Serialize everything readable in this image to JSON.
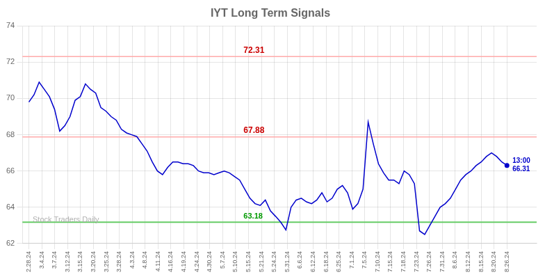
{
  "chart_data": {
    "type": "line",
    "title": "IYT Long Term Signals",
    "x": [
      0,
      0.397849,
      0.795699,
      1.193548,
      1.591398,
      1.989247,
      2.387097,
      2.784946,
      3.182796,
      3.580645,
      3.978495,
      4.376344,
      4.774194,
      5.172043,
      5.569892,
      5.967742,
      6.365591,
      6.763441,
      7.16129,
      7.55914,
      7.956989,
      8.354839,
      8.752688,
      9.150538,
      9.548387,
      9.946237,
      10.344086,
      10.741935,
      11.139785,
      11.537634,
      11.935484,
      12.333333,
      12.731183,
      13.129032,
      13.526882,
      13.924731,
      14.322581,
      14.72043,
      15.11828,
      15.516129,
      15.913978,
      16.311828,
      16.709677,
      17.107527,
      17.505376,
      17.903226,
      18.301075,
      18.698925,
      19.096774,
      19.494624,
      19.892473,
      20.290323,
      20.688172,
      21.086022,
      21.483871,
      21.88172,
      22.27957,
      22.677419,
      23.075269,
      23.473118,
      23.870968,
      24.268817,
      24.666667,
      25.064516,
      25.462366,
      25.860215,
      26.258065,
      26.655914,
      27.053763,
      27.451613,
      27.849462,
      28.247312,
      28.645161,
      29.043011,
      29.44086,
      29.83871,
      30.236559,
      30.634409,
      31.032258,
      31.430108,
      31.827957,
      32.225806,
      32.623656,
      33.021505,
      33.419355,
      33.817204,
      34.215054,
      34.612903,
      35.010753,
      35.408602,
      35.806452,
      36.204301,
      36.602151,
      37
    ],
    "values": [
      69.8,
      70.2,
      70.9,
      70.5,
      70.1,
      69.4,
      68.2,
      68.5,
      69.0,
      69.9,
      70.1,
      70.8,
      70.5,
      70.3,
      69.5,
      69.3,
      69.0,
      68.8,
      68.3,
      68.1,
      68.0,
      67.9,
      67.5,
      67.1,
      66.5,
      66.0,
      65.8,
      66.2,
      66.5,
      66.5,
      66.4,
      66.4,
      66.3,
      66.0,
      65.9,
      65.9,
      65.8,
      65.9,
      66.0,
      65.9,
      65.7,
      65.5,
      65.0,
      64.5,
      64.2,
      64.1,
      64.4,
      63.8,
      63.5,
      63.18,
      62.75,
      64.0,
      64.4,
      64.5,
      64.3,
      64.2,
      64.4,
      64.8,
      64.3,
      64.5,
      65.0,
      65.2,
      64.8,
      63.9,
      64.2,
      65.0,
      68.7,
      67.5,
      66.4,
      65.9,
      65.5,
      65.5,
      65.3,
      66.0,
      65.8,
      65.3,
      62.7,
      62.5,
      63.0,
      63.5,
      64.0,
      64.2,
      64.5,
      65.0,
      65.5,
      65.8,
      66.0,
      66.3,
      66.5,
      66.8,
      67.0,
      66.8,
      66.5,
      66.31
    ],
    "color": "#0000cc",
    "xlim": [
      -0.5,
      39.3
    ],
    "xticks": [
      {
        "value": 0,
        "label": "2.28.24"
      },
      {
        "value": 1,
        "label": "3.4.24"
      },
      {
        "value": 2,
        "label": "3.7.24"
      },
      {
        "value": 3,
        "label": "3.12.24"
      },
      {
        "value": 4,
        "label": "3.15.24"
      },
      {
        "value": 5,
        "label": "3.20.24"
      },
      {
        "value": 6,
        "label": "3.25.24"
      },
      {
        "value": 7,
        "label": "3.28.24"
      },
      {
        "value": 8,
        "label": "4.3.24"
      },
      {
        "value": 9,
        "label": "4.8.24"
      },
      {
        "value": 10,
        "label": "4.11.24"
      },
      {
        "value": 11,
        "label": "4.16.24"
      },
      {
        "value": 12,
        "label": "4.19.24"
      },
      {
        "value": 13,
        "label": "4.24.24"
      },
      {
        "value": 14,
        "label": "4.30.24"
      },
      {
        "value": 15,
        "label": "5.7.24"
      },
      {
        "value": 16,
        "label": "5.10.24"
      },
      {
        "value": 17,
        "label": "5.15.24"
      },
      {
        "value": 18,
        "label": "5.21.24"
      },
      {
        "value": 19,
        "label": "5.24.24"
      },
      {
        "value": 20,
        "label": "5.31.24"
      },
      {
        "value": 21,
        "label": "6.6.24"
      },
      {
        "value": 22,
        "label": "6.12.24"
      },
      {
        "value": 23,
        "label": "6.18.24"
      },
      {
        "value": 24,
        "label": "6.25.24"
      },
      {
        "value": 25,
        "label": "7.1.24"
      },
      {
        "value": 26,
        "label": "7.5.24"
      },
      {
        "value": 27,
        "label": "7.10.24"
      },
      {
        "value": 28,
        "label": "7.15.24"
      },
      {
        "value": 29,
        "label": "7.18.24"
      },
      {
        "value": 30,
        "label": "7.23.24"
      },
      {
        "value": 31,
        "label": "7.26.24"
      },
      {
        "value": 32,
        "label": "7.31.24"
      },
      {
        "value": 33,
        "label": "8.6.24"
      },
      {
        "value": 34,
        "label": "8.12.24"
      },
      {
        "value": 35,
        "label": "8.15.24"
      },
      {
        "value": 36,
        "label": "8.20.24"
      },
      {
        "value": 37,
        "label": "8.26.24"
      }
    ],
    "ylim": [
      62,
      74
    ],
    "yticks": [
      62,
      64,
      66,
      68,
      70,
      72,
      74
    ],
    "grid": true,
    "hlines": [
      {
        "value": 72.31,
        "color": "#ffaaaa",
        "label_color": "#cc0000"
      },
      {
        "value": 67.88,
        "color": "#ffaaaa",
        "label_color": "#cc0000"
      },
      {
        "value": 63.18,
        "color": "#66cc66",
        "label_color": "#009900"
      }
    ],
    "annotations": [
      {
        "x": 37,
        "y": 66.31,
        "text": "13:00",
        "color": "#0000cc"
      }
    ],
    "watermark": "Stock Traders Daily",
    "watermark_color": "#b0b0b0"
  }
}
